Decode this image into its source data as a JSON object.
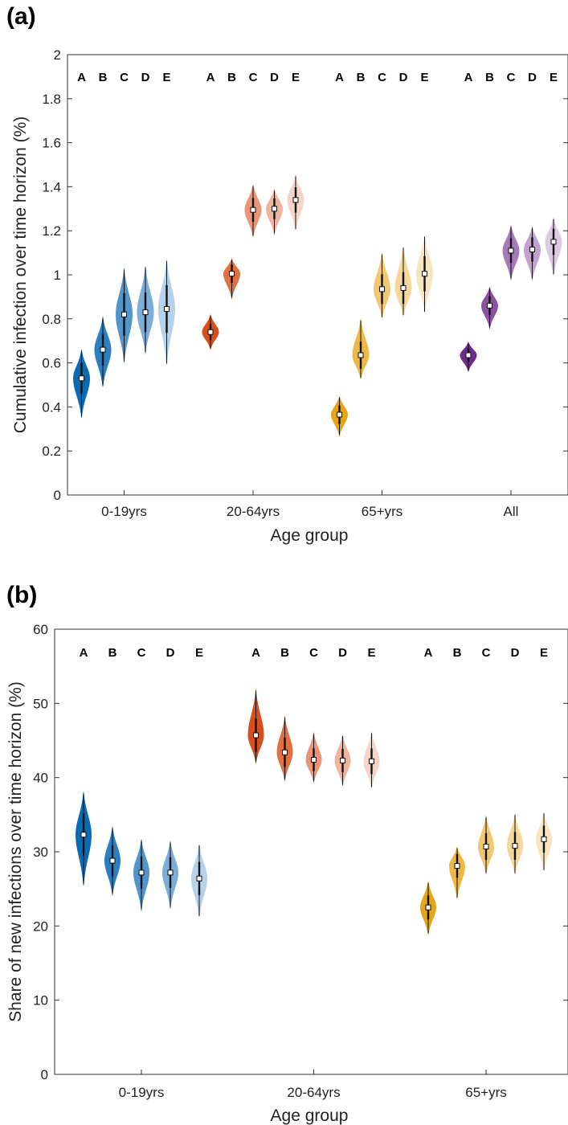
{
  "panels": [
    {
      "label": "(a)",
      "chart_data": {
        "type": "violin",
        "xlabel": "Age group",
        "ylabel": "Cumulative infection over time horizon (%)",
        "ylim": [
          0,
          2
        ],
        "yticks": [
          0,
          0.2,
          0.4,
          0.6,
          0.8,
          1,
          1.2,
          1.4,
          1.6,
          1.8,
          2
        ],
        "ytick_labels": [
          "0",
          "0.2",
          "0.4",
          "0.6",
          "0.8",
          "1",
          "1.2",
          "1.4",
          "1.6",
          "1.8",
          "2"
        ],
        "box": "on",
        "grid": "off",
        "scenarios": [
          "A",
          "B",
          "C",
          "D",
          "E"
        ],
        "groups": [
          {
            "name": "0-19yrs",
            "colors": [
              "#0a6bb5",
              "#2b7fc0",
              "#5295cc",
              "#7daed9",
              "#b5d2ea"
            ],
            "medians": [
              0.53,
              0.66,
              0.82,
              0.83,
              0.845
            ],
            "mins": [
              0.35,
              0.49,
              0.6,
              0.64,
              0.59
            ],
            "maxs": [
              0.66,
              0.81,
              1.03,
              1.04,
              1.07
            ]
          },
          {
            "name": "20-64yrs",
            "colors": [
              "#d64f1c",
              "#e0703f",
              "#e8957a",
              "#efb49e",
              "#f5d5c8"
            ],
            "medians": [
              0.74,
              1.005,
              1.295,
              1.3,
              1.34
            ],
            "mins": [
              0.66,
              0.89,
              1.17,
              1.18,
              1.2
            ],
            "maxs": [
              0.82,
              1.075,
              1.41,
              1.39,
              1.455
            ]
          },
          {
            "name": "65+yrs",
            "colors": [
              "#e6a517",
              "#edb845",
              "#f1c871",
              "#f4d79a",
              "#f8e6c1"
            ],
            "medians": [
              0.365,
              0.635,
              0.935,
              0.94,
              1.005
            ],
            "mins": [
              0.265,
              0.525,
              0.8,
              0.81,
              0.825
            ],
            "maxs": [
              0.45,
              0.8,
              1.1,
              1.13,
              1.18
            ]
          },
          {
            "name": "All",
            "colors": [
              "#6e2a8c",
              "#8b51a2",
              "#a67ab9",
              "#c1a2cd",
              "#dccae3"
            ],
            "medians": [
              0.635,
              0.86,
              1.11,
              1.115,
              1.15
            ],
            "mins": [
              0.56,
              0.755,
              0.975,
              0.975,
              0.995
            ],
            "maxs": [
              0.695,
              0.945,
              1.225,
              1.22,
              1.26
            ]
          }
        ]
      }
    },
    {
      "label": "(b)",
      "chart_data": {
        "type": "violin",
        "xlabel": "Age group",
        "ylabel": "Share of new infections over time horizon (%)",
        "ylim": [
          0,
          60
        ],
        "yticks": [
          0,
          10,
          20,
          30,
          40,
          50,
          60
        ],
        "ytick_labels": [
          "0",
          "10",
          "20",
          "30",
          "40",
          "50",
          "60"
        ],
        "box": "on",
        "grid": "off",
        "scenarios": [
          "A",
          "B",
          "C",
          "D",
          "E"
        ],
        "groups": [
          {
            "name": "0-19yrs",
            "colors": [
              "#0a6bb5",
              "#2b7fc0",
              "#5295cc",
              "#7daed9",
              "#b5d2ea"
            ],
            "medians": [
              32.3,
              28.8,
              27.2,
              27.2,
              26.4
            ],
            "mins": [
              25.4,
              24.1,
              22.0,
              22.3,
              21.1
            ],
            "maxs": [
              38.1,
              33.4,
              31.7,
              31.5,
              31.1
            ]
          },
          {
            "name": "20-64yrs",
            "colors": [
              "#d64f1c",
              "#e0703f",
              "#e8957a",
              "#efb49e",
              "#f5d5c8"
            ],
            "medians": [
              45.7,
              43.4,
              42.4,
              42.3,
              42.2
            ],
            "mins": [
              41.9,
              39.5,
              39.3,
              38.8,
              38.5
            ],
            "maxs": [
              51.9,
              48.3,
              46.1,
              45.8,
              46.2
            ]
          },
          {
            "name": "65+yrs",
            "colors": [
              "#e6a517",
              "#edb845",
              "#f1c871",
              "#f4d79a",
              "#f8e6c1"
            ],
            "medians": [
              22.5,
              28.1,
              30.7,
              30.8,
              31.7
            ],
            "mins": [
              18.8,
              23.6,
              26.9,
              26.9,
              27.3
            ],
            "maxs": [
              26.0,
              30.7,
              34.9,
              35.2,
              35.4
            ]
          }
        ]
      }
    }
  ]
}
